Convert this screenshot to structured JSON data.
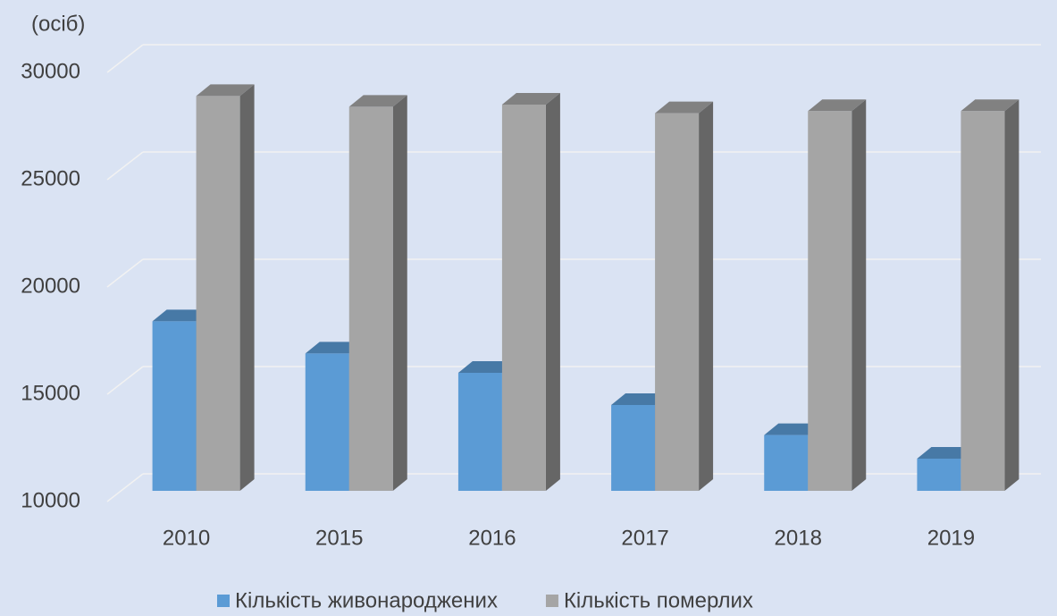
{
  "chart_data": {
    "type": "bar3d",
    "y_label": "(осіб)",
    "categories": [
      "2010",
      "2015",
      "2016",
      "2017",
      "2018",
      "2019"
    ],
    "series": [
      {
        "name": "Кількість живонароджених",
        "color": "#5b9bd5",
        "values": [
          17900,
          16400,
          15500,
          14000,
          12600,
          11500
        ]
      },
      {
        "name": "Кількість померлих",
        "color": "#a5a5a5",
        "values": [
          28400,
          27900,
          28000,
          27600,
          27700,
          27700
        ]
      }
    ],
    "ylim": [
      10000,
      30000
    ],
    "yticks": [
      10000,
      15000,
      20000,
      25000,
      30000
    ],
    "grid": true
  }
}
